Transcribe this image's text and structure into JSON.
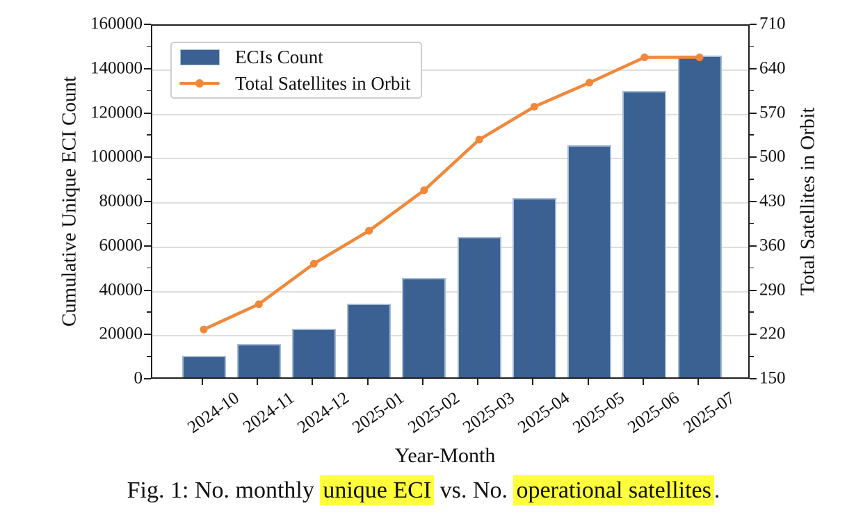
{
  "figure": {
    "caption_segments": [
      {
        "text": "Fig. 1: No. monthly ",
        "highlight": false
      },
      {
        "text": "unique ECI",
        "highlight": true
      },
      {
        "text": " vs. No. ",
        "highlight": false
      },
      {
        "text": "operational satellites",
        "highlight": true
      },
      {
        "text": ".",
        "highlight": false
      }
    ]
  },
  "chart_data": {
    "type": "combo-bar-line",
    "categories": [
      "2024-10",
      "2024-11",
      "2024-12",
      "2025-01",
      "2025-02",
      "2025-03",
      "2025-04",
      "2025-05",
      "2025-06",
      "2025-07"
    ],
    "series": [
      {
        "name": "ECIs Count",
        "type": "bar",
        "axis": "left",
        "values": [
          9700,
          15100,
          21900,
          33200,
          44900,
          63400,
          81000,
          104800,
          129300,
          145400
        ]
      },
      {
        "name": "Total Satellites in Orbit",
        "type": "line",
        "axis": "right",
        "values": [
          230,
          270,
          334,
          386,
          450,
          530,
          582,
          620,
          660,
          660
        ]
      }
    ],
    "xlabel": "Year-Month",
    "ylabel_left": "Cumulative Unique ECI Count",
    "ylabel_right": "Total Satellites in Orbit",
    "left_axis": {
      "min": 0,
      "max": 160000,
      "tick_step": 20000,
      "tick_labels_top_to_bottom": [
        "160000",
        "140000",
        "120000",
        "100000",
        "80000",
        "60000",
        "40000",
        "20000",
        "0"
      ]
    },
    "right_axis": {
      "min": 150,
      "max": 710,
      "tick_step": 70,
      "tick_labels_top_to_bottom": [
        "710",
        "640",
        "570",
        "500",
        "430",
        "360",
        "290",
        "220",
        "150"
      ]
    },
    "legend": {
      "bar_label": "ECIs Count",
      "line_label": "Total Satellites in Orbit",
      "position": "upper left"
    },
    "grid": "horizontal-major",
    "colors": {
      "bar_fill": "#3a6191",
      "bar_edge": "#a7bcd6",
      "line": "#f0883a",
      "grid": "#dedede",
      "spine": "#1f1f1f",
      "caption_highlight": "#ffff3c"
    }
  }
}
